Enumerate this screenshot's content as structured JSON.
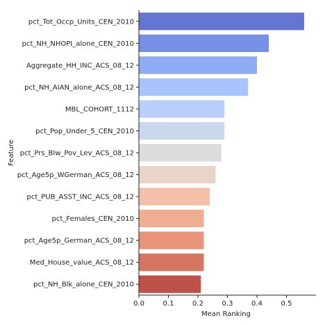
{
  "chart_data": {
    "type": "bar",
    "orientation": "horizontal",
    "title": "",
    "xlabel": "Mean Ranking",
    "ylabel": "Feature",
    "xlim": [
      0,
      0.6
    ],
    "xticks": [
      0.0,
      0.1,
      0.2,
      0.3,
      0.4,
      0.5
    ],
    "xtick_labels": [
      "0.0",
      "0.1",
      "0.2",
      "0.3",
      "0.4",
      "0.5"
    ],
    "grid": false,
    "categories": [
      "pct_Tot_Occp_Units_CEN_2010",
      "pct_NH_NHOPI_alone_CEN_2010",
      "Aggregate_HH_INC_ACS_08_12",
      "pct_NH_AIAN_alone_ACS_08_12",
      "MBL_COHORT_1112",
      "pct_Pop_Under_5_CEN_2010",
      "pct_Prs_Blw_Pov_Lev_ACS_08_12",
      "pct_Age5p_WGerman_ACS_08_12",
      "pct_PUB_ASST_INC_ACS_08_12",
      "pct_Females_CEN_2010",
      "pct_Age5p_German_ACS_08_12",
      "Med_House_value_ACS_08_12",
      "pct_NH_Blk_alone_CEN_2010"
    ],
    "values": [
      0.56,
      0.44,
      0.4,
      0.37,
      0.29,
      0.29,
      0.28,
      0.26,
      0.24,
      0.22,
      0.22,
      0.22,
      0.21
    ],
    "colors": [
      "#6276d2",
      "#7590e5",
      "#8fabf4",
      "#a9c4fd",
      "#b7cff9",
      "#cad8ee",
      "#dddcdc",
      "#ead4c8",
      "#f2c0a8",
      "#efad91",
      "#e8937a",
      "#d67560",
      "#c0504a"
    ]
  }
}
